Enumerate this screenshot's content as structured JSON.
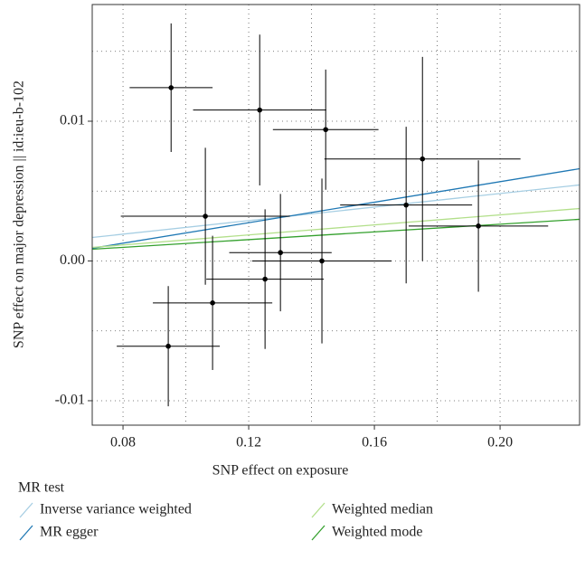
{
  "chart_data": {
    "type": "scatter",
    "x_label": "SNP effect on exposure",
    "y_label": "SNP effect on major depression || id:ieu-b-102",
    "xlim": [
      0.0702,
      0.2253
    ],
    "ylim": [
      -0.01175,
      0.01835
    ],
    "xticks": [
      0.08,
      0.12,
      0.16,
      {
        "value": 0.2,
        "label": "0.20"
      }
    ],
    "yticks": [
      -0.01,
      {
        "value": 0,
        "label": "0.00"
      },
      0.01
    ],
    "x_minor_grid": [
      0.1,
      0.14,
      0.18
    ],
    "y_minor_grid": [
      -0.005,
      0.005,
      0.015
    ],
    "grid": true,
    "points": {
      "color": "#000000",
      "x": [
        0.0953,
        0.1235,
        0.1445,
        0.1753,
        0.1701,
        0.1062,
        0.1931,
        0.1301,
        0.1433,
        0.1252,
        0.1085,
        0.0944
      ],
      "values": [
        0.0124,
        0.0108,
        0.0094,
        0.0073,
        0.004,
        0.0032,
        0.0025,
        0.0006,
        0.0,
        -0.0013,
        -0.003,
        -0.0061
      ],
      "xerr": [
        0.0132,
        0.0212,
        0.0168,
        0.0312,
        0.021,
        0.0269,
        0.0222,
        0.0163,
        0.0222,
        0.0187,
        0.019,
        0.0164
      ],
      "yerr": [
        0.0046,
        0.0054,
        0.0043,
        0.0073,
        0.0056,
        0.0049,
        0.0047,
        0.0042,
        0.0059,
        0.005,
        0.0048,
        0.0043
      ]
    },
    "legend_title": "MR test",
    "series": [
      {
        "name": "Inverse variance weighted",
        "color": "#a6cee3",
        "x": [
          0.0702,
          0.2253
        ],
        "values": [
          0.00168,
          0.00544
        ]
      },
      {
        "name": "MR egger",
        "color": "#1f78b4",
        "x": [
          0.0702,
          0.2253
        ],
        "values": [
          0.00091,
          0.0066
        ]
      },
      {
        "name": "Weighted median",
        "color": "#b2df8a",
        "x": [
          0.0702,
          0.2253
        ],
        "values": [
          0.00097,
          0.00375
        ]
      },
      {
        "name": "Weighted mode",
        "color": "#33a02c",
        "x": [
          0.0702,
          0.2253
        ],
        "values": [
          0.00084,
          0.00298
        ]
      }
    ]
  }
}
